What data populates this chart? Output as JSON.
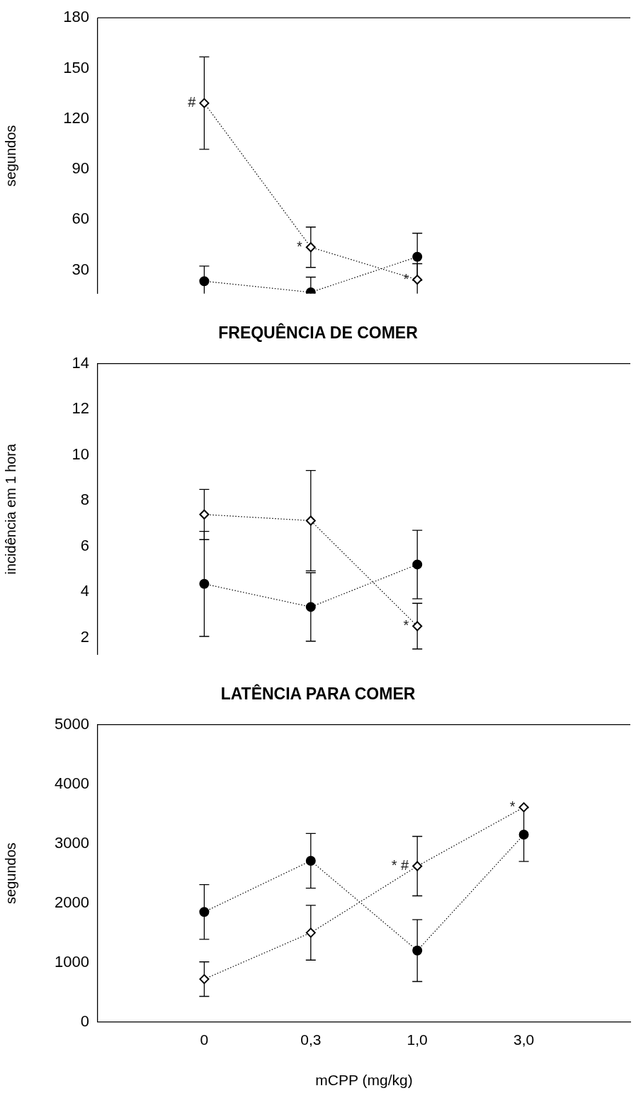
{
  "chart_data": [
    {
      "type": "line",
      "ylabel": "segundos",
      "categories": [
        "0",
        "0,3",
        "1,0",
        "3,0"
      ],
      "ylim": [
        16,
        180
      ],
      "yticks": [
        30,
        60,
        90,
        120,
        150,
        180
      ],
      "tick_labels": "y",
      "grid": false,
      "legend": false,
      "line_style": "dotted",
      "series": [
        {
          "color": "#000000",
          "marker": "circle",
          "values": [
            23.4,
            16.8,
            37.9,
            null
          ],
          "errors": [
            9,
            9,
            14,
            null
          ]
        },
        {
          "color": "#000000",
          "marker": "diamond",
          "values": [
            129.3,
            43.6,
            24.3,
            null
          ],
          "errors": [
            27.5,
            12,
            9.5,
            null
          ]
        }
      ],
      "annotations": [
        {
          "text": "#",
          "x": "0",
          "y": 129.3
        },
        {
          "text": "*",
          "x": "0,3",
          "y": 43.6
        },
        {
          "text": "*",
          "x": "1,0",
          "y": 24.3
        }
      ]
    },
    {
      "type": "line",
      "title": "FREQUÊNCIA DE COMER",
      "ylabel": "incidência em 1 hora",
      "categories": [
        "0",
        "0,3",
        "1,0",
        "3,0"
      ],
      "ylim": [
        1.25,
        14
      ],
      "yticks": [
        2,
        4,
        6,
        8,
        10,
        12,
        14
      ],
      "tick_labels": "y",
      "grid": false,
      "legend": false,
      "line_style": "dotted",
      "series": [
        {
          "color": "#000000",
          "marker": "circle",
          "values": [
            4.35,
            3.34,
            5.2,
            null
          ],
          "errors": [
            2.3,
            1.5,
            1.5,
            null
          ]
        },
        {
          "color": "#000000",
          "marker": "diamond",
          "values": [
            7.39,
            7.12,
            2.5,
            null
          ],
          "errors": [
            1.1,
            2.2,
            1,
            null
          ]
        }
      ],
      "annotations": [
        {
          "text": "*",
          "x": "1,0",
          "y": 2.5
        }
      ]
    },
    {
      "type": "line",
      "title": "LATÊNCIA PARA COMER",
      "xlabel": "mCPP (mg/kg)",
      "ylabel": "segundos",
      "categories": [
        "0",
        "0,3",
        "1,0",
        "3,0"
      ],
      "ylim": [
        0,
        5000
      ],
      "yticks": [
        0,
        1000,
        2000,
        3000,
        4000,
        5000
      ],
      "grid": false,
      "legend": false,
      "line_style": "dotted",
      "series": [
        {
          "color": "#000000",
          "marker": "circle",
          "values": [
            1850,
            2710,
            1200,
            3150
          ],
          "errors": [
            460,
            460,
            520,
            450
          ]
        },
        {
          "color": "#000000",
          "marker": "diamond",
          "values": [
            720,
            1500,
            2620,
            3610
          ],
          "errors": [
            290,
            460,
            500,
            null
          ]
        }
      ],
      "annotations": [
        {
          "text": "* #",
          "x": "1,0",
          "y": 2620
        },
        {
          "text": "*",
          "x": "3,0",
          "y": 3610
        }
      ]
    }
  ]
}
